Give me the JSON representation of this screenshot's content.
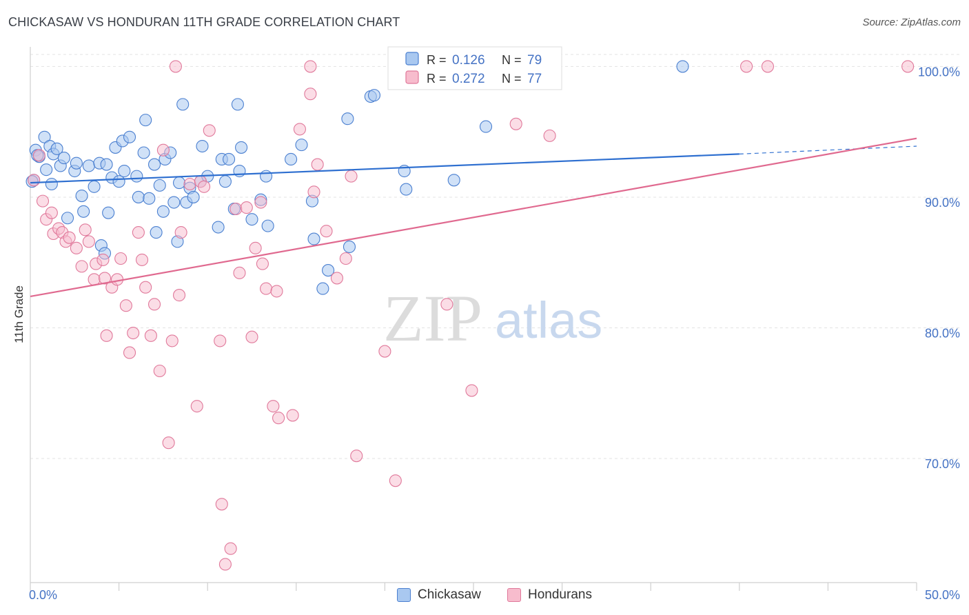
{
  "header": {
    "title": "CHICKASAW VS HONDURAN 11TH GRADE CORRELATION CHART",
    "source": "Source: ZipAtlas.com"
  },
  "watermark": {
    "zip": "ZIP",
    "atlas": "atlas"
  },
  "legend": {
    "items": [
      {
        "r_label": "R =",
        "r_value": "0.126",
        "n_label": "N =",
        "n_value": "79"
      },
      {
        "r_label": "R =",
        "r_value": "0.272",
        "n_label": "N =",
        "n_value": "77"
      }
    ]
  },
  "bottom_legend": {
    "items": [
      "Chickasaw",
      "Hondurans"
    ]
  },
  "colors": {
    "chickasaw_fill": "#a9c8f0",
    "chickasaw_stroke": "#4a7fd0",
    "chickasaw_line": "#2e6fd0",
    "hondurans_fill": "#f7bccd",
    "hondurans_stroke": "#e0789a",
    "hondurans_line": "#e0698f",
    "tick_label": "#4472c4",
    "grid": "#e3e3e3"
  },
  "chart_data": {
    "type": "scatter",
    "title": "CHICKASAW VS HONDURAN 11TH GRADE CORRELATION CHART",
    "xlabel": "",
    "ylabel": "11th Grade",
    "xlim": [
      0,
      50
    ],
    "ylim": [
      60.5,
      101.5
    ],
    "x_tick_labels": [
      "0.0%",
      "50.0%"
    ],
    "y_ticks": [
      70,
      80,
      90,
      100
    ],
    "y_tick_labels": [
      "70.0%",
      "80.0%",
      "90.0%",
      "100.0%"
    ],
    "grid": true,
    "legend_placement": "top-center",
    "series": [
      {
        "name": "Chickasaw",
        "r": 0.126,
        "n": 79,
        "trend": {
          "x0": 0,
          "y0": 91.1,
          "x1": 40,
          "y1": 93.3,
          "dashed_to_x": 50,
          "dashed_to_y": 93.9
        },
        "points": [
          [
            0.2,
            91.3
          ],
          [
            0.3,
            93.6
          ],
          [
            0.5,
            93.1
          ],
          [
            0.8,
            94.6
          ],
          [
            0.9,
            92.1
          ],
          [
            1.1,
            93.9
          ],
          [
            1.2,
            91.0
          ],
          [
            1.3,
            93.3
          ],
          [
            1.5,
            93.7
          ],
          [
            1.7,
            92.4
          ],
          [
            1.9,
            93.0
          ],
          [
            2.1,
            88.4
          ],
          [
            2.5,
            92.0
          ],
          [
            2.6,
            92.6
          ],
          [
            2.9,
            90.1
          ],
          [
            3.0,
            88.9
          ],
          [
            3.3,
            92.4
          ],
          [
            3.6,
            90.8
          ],
          [
            3.9,
            92.6
          ],
          [
            4.0,
            86.3
          ],
          [
            4.2,
            85.7
          ],
          [
            4.3,
            92.5
          ],
          [
            4.4,
            88.8
          ],
          [
            4.6,
            91.5
          ],
          [
            4.8,
            93.8
          ],
          [
            5.0,
            91.2
          ],
          [
            5.2,
            94.3
          ],
          [
            5.3,
            92.0
          ],
          [
            5.6,
            94.6
          ],
          [
            6.0,
            91.6
          ],
          [
            6.1,
            90.0
          ],
          [
            6.4,
            93.4
          ],
          [
            6.5,
            95.9
          ],
          [
            6.7,
            89.9
          ],
          [
            7.0,
            92.5
          ],
          [
            7.1,
            87.3
          ],
          [
            7.3,
            90.9
          ],
          [
            7.5,
            88.9
          ],
          [
            7.6,
            92.9
          ],
          [
            7.9,
            93.4
          ],
          [
            8.1,
            89.6
          ],
          [
            8.3,
            86.6
          ],
          [
            8.4,
            91.1
          ],
          [
            8.6,
            97.1
          ],
          [
            8.8,
            89.6
          ],
          [
            9.0,
            90.7
          ],
          [
            9.2,
            90.0
          ],
          [
            9.6,
            91.2
          ],
          [
            9.7,
            93.9
          ],
          [
            10.0,
            91.6
          ],
          [
            10.6,
            87.7
          ],
          [
            10.8,
            92.9
          ],
          [
            11.0,
            91.2
          ],
          [
            11.2,
            92.9
          ],
          [
            11.5,
            89.1
          ],
          [
            11.7,
            97.1
          ],
          [
            11.8,
            92.0
          ],
          [
            11.9,
            93.8
          ],
          [
            12.5,
            88.3
          ],
          [
            13.0,
            89.8
          ],
          [
            13.3,
            91.6
          ],
          [
            13.4,
            87.8
          ],
          [
            14.7,
            92.9
          ],
          [
            15.3,
            94.0
          ],
          [
            15.9,
            89.7
          ],
          [
            16.0,
            86.8
          ],
          [
            16.5,
            83.0
          ],
          [
            16.8,
            84.4
          ],
          [
            17.9,
            96.0
          ],
          [
            18.0,
            86.2
          ],
          [
            19.2,
            97.7
          ],
          [
            19.4,
            97.8
          ],
          [
            21.1,
            92.0
          ],
          [
            21.2,
            90.6
          ],
          [
            23.9,
            91.3
          ],
          [
            25.7,
            95.4
          ],
          [
            36.8,
            100.0
          ],
          [
            0.1,
            91.2
          ],
          [
            0.4,
            93.2
          ]
        ]
      },
      {
        "name": "Hondurans",
        "r": 0.272,
        "n": 77,
        "trend": {
          "x0": 0,
          "y0": 82.4,
          "x1": 50,
          "y1": 94.5
        },
        "points": [
          [
            0.2,
            91.3
          ],
          [
            0.5,
            93.2
          ],
          [
            0.7,
            89.7
          ],
          [
            0.9,
            88.3
          ],
          [
            1.2,
            88.8
          ],
          [
            1.3,
            87.2
          ],
          [
            1.6,
            87.6
          ],
          [
            1.8,
            87.3
          ],
          [
            2.0,
            86.6
          ],
          [
            2.2,
            86.9
          ],
          [
            2.6,
            86.1
          ],
          [
            2.9,
            84.7
          ],
          [
            3.1,
            87.5
          ],
          [
            3.3,
            86.6
          ],
          [
            3.6,
            83.7
          ],
          [
            3.7,
            84.9
          ],
          [
            4.1,
            85.2
          ],
          [
            4.2,
            83.8
          ],
          [
            4.3,
            79.4
          ],
          [
            4.6,
            83.1
          ],
          [
            4.9,
            83.7
          ],
          [
            5.1,
            85.3
          ],
          [
            5.4,
            81.7
          ],
          [
            5.6,
            78.1
          ],
          [
            5.8,
            79.6
          ],
          [
            6.1,
            87.3
          ],
          [
            6.3,
            85.2
          ],
          [
            6.5,
            83.1
          ],
          [
            6.8,
            79.4
          ],
          [
            7.0,
            81.8
          ],
          [
            7.3,
            76.7
          ],
          [
            7.5,
            93.6
          ],
          [
            7.8,
            71.2
          ],
          [
            8.0,
            79.0
          ],
          [
            8.4,
            82.5
          ],
          [
            8.5,
            87.3
          ],
          [
            9.0,
            91.0
          ],
          [
            9.4,
            74.0
          ],
          [
            9.6,
            91.2
          ],
          [
            9.8,
            90.8
          ],
          [
            10.1,
            95.1
          ],
          [
            10.7,
            79.0
          ],
          [
            10.8,
            66.5
          ],
          [
            11.3,
            63.1
          ],
          [
            11.6,
            89.1
          ],
          [
            11.8,
            84.2
          ],
          [
            12.2,
            89.2
          ],
          [
            12.5,
            79.3
          ],
          [
            12.7,
            86.1
          ],
          [
            13.0,
            89.6
          ],
          [
            13.1,
            84.9
          ],
          [
            13.3,
            83.0
          ],
          [
            13.7,
            74.0
          ],
          [
            13.9,
            82.8
          ],
          [
            14.0,
            73.1
          ],
          [
            14.8,
            73.3
          ],
          [
            15.2,
            95.2
          ],
          [
            15.8,
            97.9
          ],
          [
            16.0,
            90.4
          ],
          [
            16.2,
            92.5
          ],
          [
            16.7,
            87.4
          ],
          [
            17.3,
            83.8
          ],
          [
            17.8,
            85.3
          ],
          [
            18.1,
            91.6
          ],
          [
            18.4,
            70.2
          ],
          [
            20.0,
            78.2
          ],
          [
            20.6,
            68.3
          ],
          [
            23.5,
            81.8
          ],
          [
            24.9,
            75.2
          ],
          [
            27.4,
            95.6
          ],
          [
            29.3,
            94.7
          ],
          [
            11.0,
            61.9
          ],
          [
            8.2,
            100.0
          ],
          [
            15.8,
            100.0
          ],
          [
            40.4,
            100.0
          ],
          [
            41.6,
            100.0
          ],
          [
            49.5,
            100.0
          ]
        ]
      }
    ]
  }
}
